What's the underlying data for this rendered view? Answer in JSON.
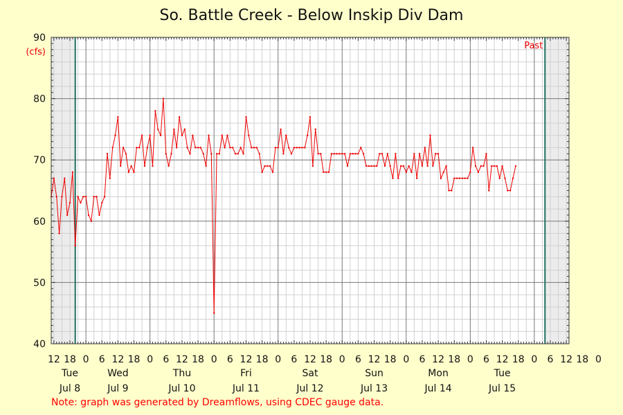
{
  "chart_data": {
    "type": "line",
    "title": "So. Battle Creek - Below Inskip Div Dam",
    "ylabel": "(cfs)",
    "ylim": [
      40,
      90
    ],
    "yticks": [
      40,
      50,
      60,
      70,
      80,
      90
    ],
    "xlim_hours": [
      -13,
      181
    ],
    "hour_labels": [
      {
        "h": -12,
        "label": "12"
      },
      {
        "h": -6,
        "label": "18"
      },
      {
        "h": 0,
        "label": "0"
      },
      {
        "h": 6,
        "label": "6"
      },
      {
        "h": 12,
        "label": "12"
      },
      {
        "h": 18,
        "label": "18"
      },
      {
        "h": 24,
        "label": "0"
      },
      {
        "h": 30,
        "label": "6"
      },
      {
        "h": 36,
        "label": "12"
      },
      {
        "h": 42,
        "label": "18"
      },
      {
        "h": 48,
        "label": "0"
      },
      {
        "h": 54,
        "label": "6"
      },
      {
        "h": 60,
        "label": "12"
      },
      {
        "h": 66,
        "label": "18"
      },
      {
        "h": 72,
        "label": "0"
      },
      {
        "h": 78,
        "label": "6"
      },
      {
        "h": 84,
        "label": "12"
      },
      {
        "h": 90,
        "label": "18"
      },
      {
        "h": 96,
        "label": "0"
      },
      {
        "h": 102,
        "label": "6"
      },
      {
        "h": 108,
        "label": "12"
      },
      {
        "h": 114,
        "label": "18"
      },
      {
        "h": 120,
        "label": "0"
      },
      {
        "h": 126,
        "label": "6"
      },
      {
        "h": 132,
        "label": "12"
      },
      {
        "h": 138,
        "label": "18"
      },
      {
        "h": 144,
        "label": "0"
      },
      {
        "h": 150,
        "label": "6"
      },
      {
        "h": 156,
        "label": "12"
      },
      {
        "h": 162,
        "label": "18"
      },
      {
        "h": 168,
        "label": "0"
      },
      {
        "h": 174,
        "label": "6"
      },
      {
        "h": 180,
        "label": "12"
      },
      {
        "h": 186,
        "label": "18"
      },
      {
        "h": 192,
        "label": "0"
      }
    ],
    "day_labels": [
      {
        "h": -6,
        "day": "Tue",
        "date": "Jul 8"
      },
      {
        "h": 12,
        "day": "Wed",
        "date": "Jul 9"
      },
      {
        "h": 36,
        "day": "Thu",
        "date": "Jul 10"
      },
      {
        "h": 60,
        "day": "Fri",
        "date": "Jul 11"
      },
      {
        "h": 84,
        "day": "Sat",
        "date": "Jul 12"
      },
      {
        "h": 108,
        "day": "Sun",
        "date": "Jul 13"
      },
      {
        "h": 132,
        "day": "Mon",
        "date": "Jul 14"
      },
      {
        "h": 156,
        "day": "Tue",
        "date": "Jul 15"
      }
    ],
    "series": [
      {
        "color": "#ee0000",
        "points": [
          [
            -13,
            64
          ],
          [
            -12,
            67
          ],
          [
            -11,
            64
          ],
          [
            -10,
            58
          ],
          [
            -9,
            64
          ],
          [
            -8,
            67
          ],
          [
            -7,
            61
          ],
          [
            -6,
            63
          ],
          [
            -5,
            68
          ],
          [
            -4,
            56
          ],
          [
            -3,
            64
          ],
          [
            -2,
            63
          ],
          [
            -1,
            64
          ],
          [
            0,
            64
          ],
          [
            1,
            61
          ],
          [
            2,
            60
          ],
          [
            3,
            64
          ],
          [
            4,
            64
          ],
          [
            5,
            61
          ],
          [
            6,
            63
          ],
          [
            7,
            64
          ],
          [
            8,
            71
          ],
          [
            9,
            67
          ],
          [
            10,
            72
          ],
          [
            11,
            74
          ],
          [
            12,
            77
          ],
          [
            13,
            69
          ],
          [
            14,
            72
          ],
          [
            15,
            71
          ],
          [
            16,
            68
          ],
          [
            17,
            69
          ],
          [
            18,
            68
          ],
          [
            19,
            72
          ],
          [
            20,
            72
          ],
          [
            21,
            74
          ],
          [
            22,
            69
          ],
          [
            23,
            72
          ],
          [
            24,
            74
          ],
          [
            25,
            69
          ],
          [
            26,
            78
          ],
          [
            27,
            75
          ],
          [
            28,
            74
          ],
          [
            29,
            80
          ],
          [
            30,
            71
          ],
          [
            31,
            69
          ],
          [
            32,
            71
          ],
          [
            33,
            75
          ],
          [
            34,
            72
          ],
          [
            35,
            77
          ],
          [
            36,
            74
          ],
          [
            37,
            75
          ],
          [
            38,
            72
          ],
          [
            39,
            71
          ],
          [
            40,
            74
          ],
          [
            41,
            72
          ],
          [
            42,
            72
          ],
          [
            43,
            72
          ],
          [
            44,
            71
          ],
          [
            45,
            69
          ],
          [
            46,
            74
          ],
          [
            47,
            71
          ],
          [
            48,
            45
          ],
          [
            49,
            71
          ],
          [
            50,
            71
          ],
          [
            51,
            74
          ],
          [
            52,
            72
          ],
          [
            53,
            74
          ],
          [
            54,
            72
          ],
          [
            55,
            72
          ],
          [
            56,
            71
          ],
          [
            57,
            71
          ],
          [
            58,
            72
          ],
          [
            59,
            71
          ],
          [
            60,
            77
          ],
          [
            61,
            74
          ],
          [
            62,
            72
          ],
          [
            63,
            72
          ],
          [
            64,
            72
          ],
          [
            65,
            71
          ],
          [
            66,
            68
          ],
          [
            67,
            69
          ],
          [
            68,
            69
          ],
          [
            69,
            69
          ],
          [
            70,
            68
          ],
          [
            71,
            72
          ],
          [
            72,
            72
          ],
          [
            73,
            75
          ],
          [
            74,
            71
          ],
          [
            75,
            74
          ],
          [
            76,
            72
          ],
          [
            77,
            71
          ],
          [
            78,
            72
          ],
          [
            79,
            72
          ],
          [
            80,
            72
          ],
          [
            81,
            72
          ],
          [
            82,
            72
          ],
          [
            83,
            74
          ],
          [
            84,
            77
          ],
          [
            85,
            69
          ],
          [
            86,
            75
          ],
          [
            87,
            71
          ],
          [
            88,
            71
          ],
          [
            89,
            68
          ],
          [
            90,
            68
          ],
          [
            91,
            68
          ],
          [
            92,
            71
          ],
          [
            93,
            71
          ],
          [
            94,
            71
          ],
          [
            95,
            71
          ],
          [
            96,
            71
          ],
          [
            97,
            71
          ],
          [
            98,
            69
          ],
          [
            99,
            71
          ],
          [
            100,
            71
          ],
          [
            101,
            71
          ],
          [
            102,
            71
          ],
          [
            103,
            72
          ],
          [
            104,
            71
          ],
          [
            105,
            69
          ],
          [
            106,
            69
          ],
          [
            107,
            69
          ],
          [
            108,
            69
          ],
          [
            109,
            69
          ],
          [
            110,
            71
          ],
          [
            111,
            71
          ],
          [
            112,
            69
          ],
          [
            113,
            71
          ],
          [
            114,
            69
          ],
          [
            115,
            67
          ],
          [
            116,
            71
          ],
          [
            117,
            67
          ],
          [
            118,
            69
          ],
          [
            119,
            69
          ],
          [
            120,
            68
          ],
          [
            121,
            69
          ],
          [
            122,
            68
          ],
          [
            123,
            71
          ],
          [
            124,
            67
          ],
          [
            125,
            71
          ],
          [
            126,
            69
          ],
          [
            127,
            72
          ],
          [
            128,
            69
          ],
          [
            129,
            74
          ],
          [
            130,
            69
          ],
          [
            131,
            71
          ],
          [
            132,
            71
          ],
          [
            133,
            67
          ],
          [
            134,
            68
          ],
          [
            135,
            69
          ],
          [
            136,
            65
          ],
          [
            137,
            65
          ],
          [
            138,
            67
          ],
          [
            139,
            67
          ],
          [
            140,
            67
          ],
          [
            141,
            67
          ],
          [
            142,
            67
          ],
          [
            143,
            67
          ],
          [
            144,
            68
          ],
          [
            145,
            72
          ],
          [
            146,
            69
          ],
          [
            147,
            68
          ],
          [
            148,
            69
          ],
          [
            149,
            69
          ],
          [
            150,
            71
          ],
          [
            151,
            65
          ],
          [
            152,
            69
          ],
          [
            153,
            69
          ],
          [
            154,
            69
          ],
          [
            155,
            67
          ],
          [
            156,
            69
          ],
          [
            157,
            67
          ],
          [
            158,
            65
          ],
          [
            159,
            65
          ],
          [
            160,
            67
          ],
          [
            161,
            69
          ]
        ]
      }
    ],
    "shaded_ranges_hours": [
      [
        -13,
        -4
      ],
      [
        172,
        181
      ]
    ],
    "markers_hours": [
      -4,
      172
    ],
    "marker_color": "#1f6f5f",
    "annotation": "Past",
    "annotation_color": "#ee0000",
    "grid": true
  },
  "note": "Note: graph was generated by Dreamflows, using CDEC gauge data."
}
